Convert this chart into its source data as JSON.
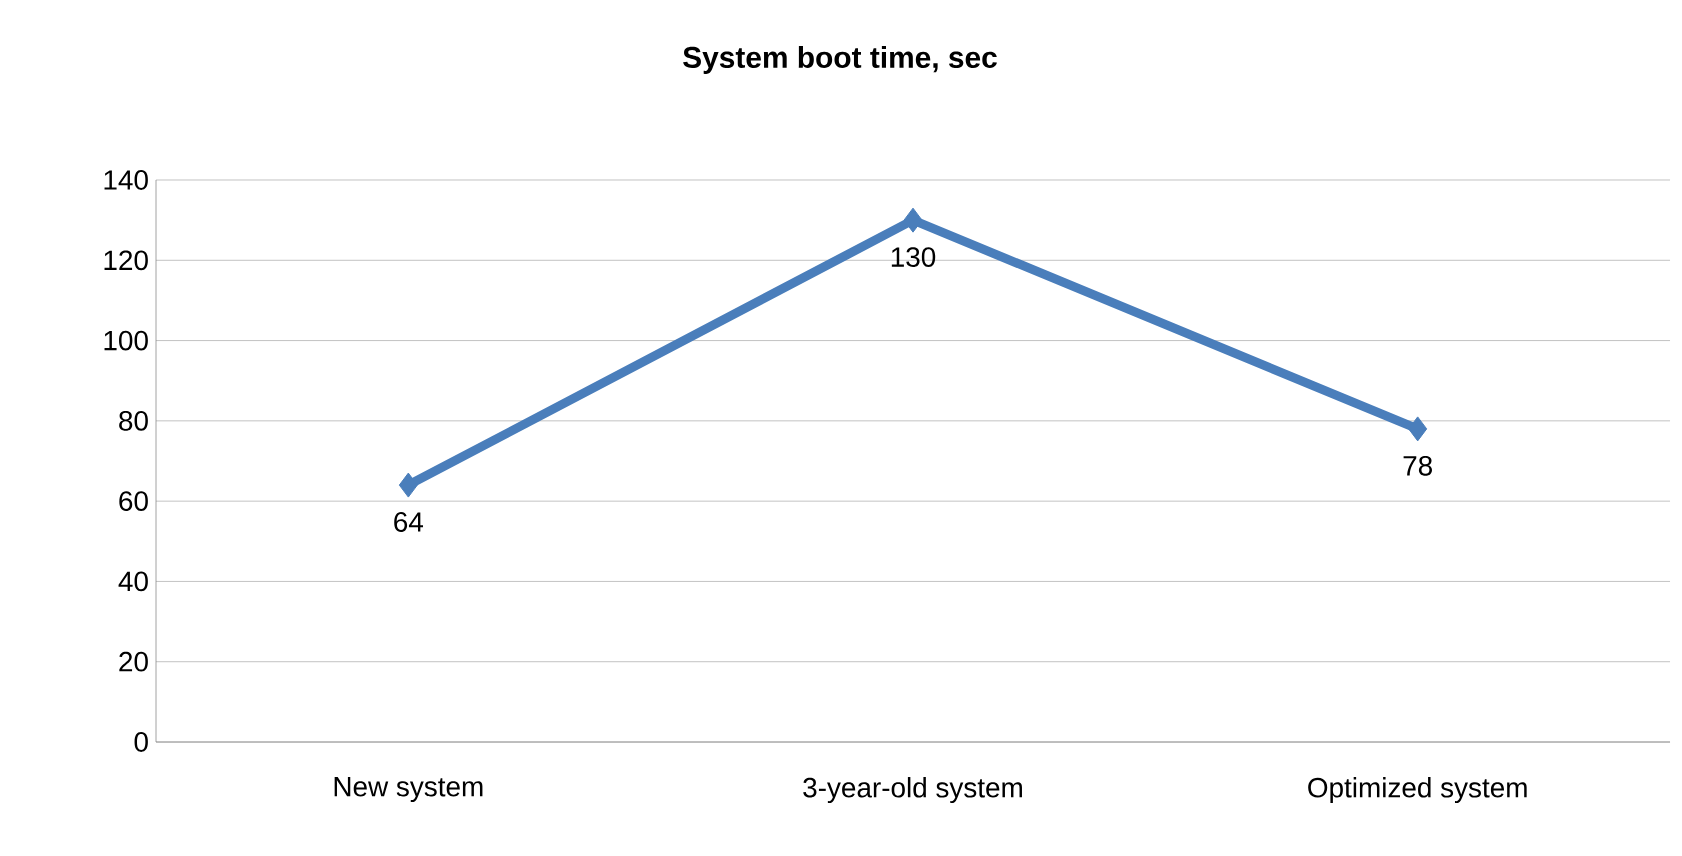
{
  "chart_data": {
    "type": "line",
    "title": "System boot time, sec",
    "categories": [
      "New system",
      "3-year-old system",
      "Optimized system"
    ],
    "series": [
      {
        "color": "#4a7ebb",
        "values": [
          64,
          130,
          78
        ]
      }
    ],
    "ylim": [
      0,
      140
    ],
    "yticks": [
      0,
      20,
      40,
      60,
      80,
      100,
      120,
      140
    ],
    "grid": "y",
    "marker": "diamond",
    "line_style": "solid",
    "data_labels": true
  }
}
